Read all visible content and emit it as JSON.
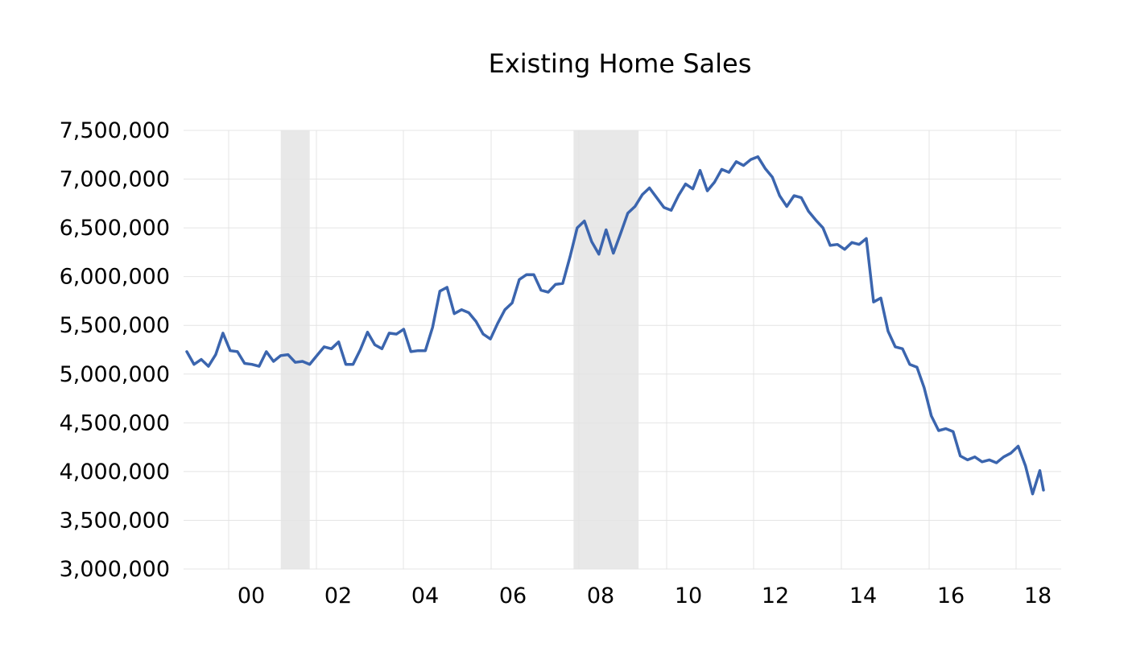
{
  "chart_data": {
    "type": "line",
    "title": "Existing Home Sales",
    "xlabel": "",
    "ylabel": "",
    "ylim": [
      3000000,
      7500000
    ],
    "xlim": [
      "1999-01",
      "2018-10"
    ],
    "y_ticks": [
      "7,500,000",
      "7,000,000",
      "6,500,000",
      "6,000,000",
      "5,500,000",
      "5,000,000",
      "4,500,000",
      "4,000,000",
      "3,500,000",
      "3,000,000"
    ],
    "x_ticks": [
      "00",
      "02",
      "04",
      "06",
      "08",
      "10",
      "12",
      "14",
      "16",
      "18"
    ],
    "grid": true,
    "recessions": [
      {
        "start": "2001-03",
        "end": "2001-11"
      },
      {
        "start": "2007-12",
        "end": "2009-06"
      }
    ],
    "colors": {
      "line": "#3b65ae",
      "recession": "#e8e8e8",
      "grid": "#e4e4e4"
    },
    "series": [
      {
        "values": [
          [
            "1999-01",
            5230000
          ],
          [
            "1999-03",
            5100000
          ],
          [
            "1999-05",
            5150000
          ],
          [
            "1999-07",
            5080000
          ],
          [
            "1999-09",
            5200000
          ],
          [
            "1999-11",
            5420000
          ],
          [
            "2000-01",
            5240000
          ],
          [
            "2000-03",
            5230000
          ],
          [
            "2000-05",
            5110000
          ],
          [
            "2000-07",
            5100000
          ],
          [
            "2000-09",
            5080000
          ],
          [
            "2000-11",
            5230000
          ],
          [
            "2001-01",
            5130000
          ],
          [
            "2001-03",
            5190000
          ],
          [
            "2001-05",
            5200000
          ],
          [
            "2001-07",
            5120000
          ],
          [
            "2001-09",
            5130000
          ],
          [
            "2001-11",
            5100000
          ],
          [
            "2002-01",
            5190000
          ],
          [
            "2002-03",
            5280000
          ],
          [
            "2002-05",
            5260000
          ],
          [
            "2002-07",
            5330000
          ],
          [
            "2002-09",
            5100000
          ],
          [
            "2002-11",
            5100000
          ],
          [
            "2003-01",
            5250000
          ],
          [
            "2003-03",
            5430000
          ],
          [
            "2003-05",
            5300000
          ],
          [
            "2003-07",
            5260000
          ],
          [
            "2003-09",
            5420000
          ],
          [
            "2003-11",
            5410000
          ],
          [
            "2004-01",
            5460000
          ],
          [
            "2004-03",
            5230000
          ],
          [
            "2004-05",
            5240000
          ],
          [
            "2004-07",
            5240000
          ],
          [
            "2004-09",
            5480000
          ],
          [
            "2004-11",
            5850000
          ],
          [
            "2005-01",
            5890000
          ],
          [
            "2005-03",
            5620000
          ],
          [
            "2005-05",
            5660000
          ],
          [
            "2005-07",
            5630000
          ],
          [
            "2005-09",
            5540000
          ],
          [
            "2005-11",
            5410000
          ],
          [
            "2006-01",
            5360000
          ],
          [
            "2006-03",
            5520000
          ],
          [
            "2006-05",
            5660000
          ],
          [
            "2006-07",
            5730000
          ],
          [
            "2006-09",
            5970000
          ],
          [
            "2006-11",
            6020000
          ],
          [
            "2007-01",
            6020000
          ],
          [
            "2007-03",
            5860000
          ],
          [
            "2007-05",
            5840000
          ],
          [
            "2007-07",
            5920000
          ],
          [
            "2007-09",
            5930000
          ],
          [
            "2007-11",
            6200000
          ],
          [
            "2008-01",
            6500000
          ],
          [
            "2008-03",
            6570000
          ],
          [
            "2008-05",
            6360000
          ],
          [
            "2008-07",
            6230000
          ],
          [
            "2008-09",
            6480000
          ],
          [
            "2008-11",
            6240000
          ],
          [
            "2009-01",
            6440000
          ],
          [
            "2009-03",
            6650000
          ],
          [
            "2009-05",
            6720000
          ],
          [
            "2009-07",
            6840000
          ],
          [
            "2009-09",
            6910000
          ],
          [
            "2009-11",
            6810000
          ],
          [
            "2010-01",
            6710000
          ],
          [
            "2010-03",
            6680000
          ],
          [
            "2010-05",
            6830000
          ],
          [
            "2010-07",
            6950000
          ],
          [
            "2010-09",
            6900000
          ],
          [
            "2010-11",
            7090000
          ],
          [
            "2011-01",
            6880000
          ],
          [
            "2011-03",
            6970000
          ],
          [
            "2011-05",
            7100000
          ],
          [
            "2011-07",
            7070000
          ],
          [
            "2011-09",
            7180000
          ],
          [
            "2011-11",
            7140000
          ],
          [
            "2012-01",
            7200000
          ],
          [
            "2012-03",
            7230000
          ],
          [
            "2012-05",
            7110000
          ],
          [
            "2012-07",
            7020000
          ],
          [
            "2012-09",
            6830000
          ],
          [
            "2012-11",
            6720000
          ],
          [
            "2013-01",
            6830000
          ],
          [
            "2013-03",
            6810000
          ],
          [
            "2013-05",
            6670000
          ],
          [
            "2013-07",
            6580000
          ],
          [
            "2013-09",
            6500000
          ],
          [
            "2013-11",
            6320000
          ],
          [
            "2014-01",
            6330000
          ],
          [
            "2014-03",
            6280000
          ],
          [
            "2014-05",
            6350000
          ],
          [
            "2014-07",
            6330000
          ],
          [
            "2014-09",
            6390000
          ],
          [
            "2014-11",
            5740000
          ],
          [
            "2015-01",
            5780000
          ],
          [
            "2015-03",
            5440000
          ],
          [
            "2015-05",
            5280000
          ],
          [
            "2015-07",
            5260000
          ],
          [
            "2015-09",
            5100000
          ],
          [
            "2015-11",
            5070000
          ],
          [
            "2016-01",
            4860000
          ],
          [
            "2016-03",
            4570000
          ],
          [
            "2016-05",
            4420000
          ],
          [
            "2016-07",
            4440000
          ],
          [
            "2016-09",
            4410000
          ],
          [
            "2016-11",
            4160000
          ],
          [
            "2017-01",
            4120000
          ],
          [
            "2017-03",
            4150000
          ],
          [
            "2017-05",
            4100000
          ],
          [
            "2017-07",
            4120000
          ],
          [
            "2017-09",
            4090000
          ],
          [
            "2017-11",
            4150000
          ],
          [
            "2018-01",
            4190000
          ],
          [
            "2018-03",
            4260000
          ],
          [
            "2018-05",
            4060000
          ],
          [
            "2018-07",
            3770000
          ],
          [
            "2018-09",
            4010000
          ],
          [
            "2018-10",
            3810000
          ]
        ]
      }
    ]
  }
}
